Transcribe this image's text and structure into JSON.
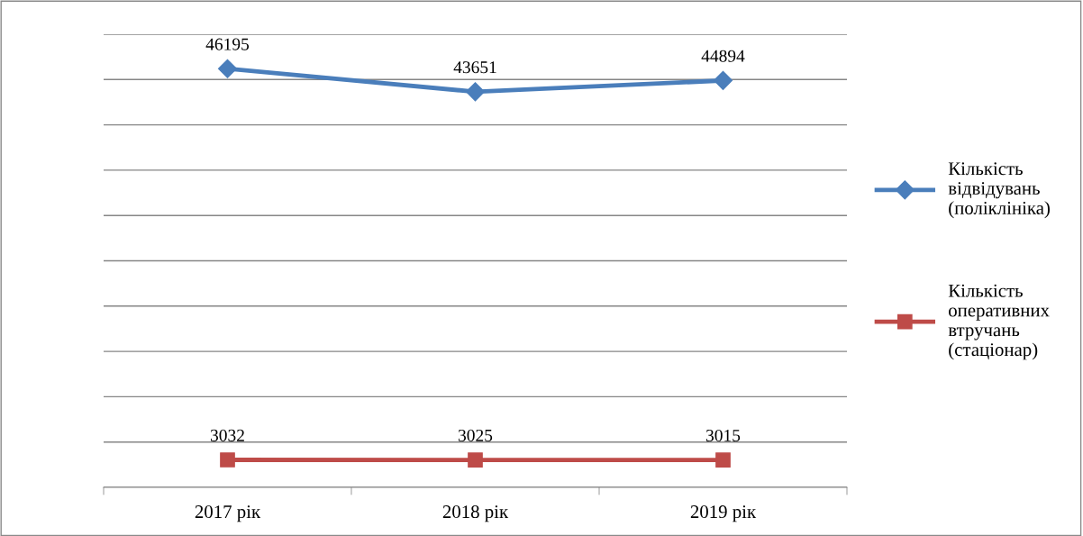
{
  "chart_data": {
    "type": "line",
    "categories": [
      "2017 рік",
      "2018 рік",
      "2019 рік"
    ],
    "series": [
      {
        "name": "Кількість відвідувань (поліклініка)",
        "color": "#4a7ebb",
        "marker": "diamond",
        "values": [
          46195,
          43651,
          44894
        ]
      },
      {
        "name": "Кількість оперативних втручань (стаціонар)",
        "color": "#be4b48",
        "marker": "square",
        "values": [
          3032,
          3025,
          3015
        ]
      }
    ],
    "ylim": [
      0,
      50000
    ],
    "yticks": [
      {
        "value": 0,
        "label": null
      },
      {
        "value": 5000,
        "label": null
      },
      {
        "value": 10000,
        "label": null
      },
      {
        "value": 15000,
        "label": null
      },
      {
        "value": 20000,
        "label": null
      },
      {
        "value": 25000,
        "label": null
      },
      {
        "value": 30000,
        "label": null
      },
      {
        "value": 35000,
        "label": null
      },
      {
        "value": 40000,
        "label": null
      },
      {
        "value": 45000,
        "label": null
      },
      {
        "value": 50000,
        "label": null
      }
    ],
    "tick_labels": "x",
    "grid": "y",
    "legend": "right",
    "data_labels": true,
    "line_style": "solid"
  }
}
